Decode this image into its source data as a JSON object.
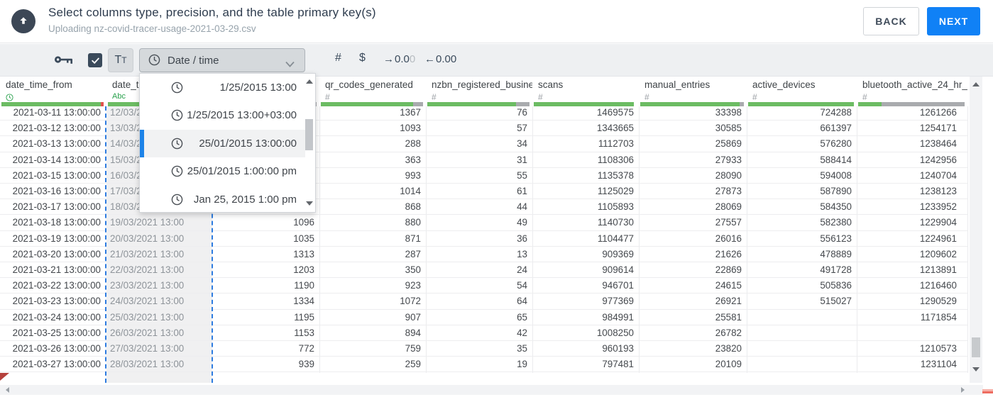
{
  "header": {
    "title": "Select columns type, precision, and the table primary key(s)",
    "subtitle": "Uploading nz-covid-tracer-usage-2021-03-29.csv",
    "back_label": "BACK",
    "next_label": "NEXT"
  },
  "toolbar": {
    "type_dropdown_label": "Date / time",
    "hash_label": "#",
    "currency_label": "$",
    "increase_decimal": {
      "arrow": "→",
      "dark": "0.0",
      "light": "0"
    },
    "decrease_decimal": {
      "arrow": "←",
      "value": "0.00"
    },
    "text_type": {
      "first": "T",
      "second": "T"
    },
    "icons": {
      "primary_key": "key-icon",
      "boolean": "checkbox-checked-icon",
      "date_type": "clock-icon",
      "dropdown": "chevron-down-icon"
    }
  },
  "type_dropdown": {
    "items": [
      {
        "label": "1/25/2015 13:00",
        "selected": false
      },
      {
        "label": "1/25/2015 13:00+03:00",
        "selected": false
      },
      {
        "label": "25/01/2015 13:00:00",
        "selected": true
      },
      {
        "label": "25/01/2015 1:00:00 pm",
        "selected": false
      },
      {
        "label": "Jan 25, 2015 1:00 pm",
        "selected": false
      }
    ]
  },
  "table": {
    "columns": [
      {
        "label": "date_time_from",
        "type_icon": "clock",
        "bar": [
          {
            "c": "green",
            "f": 0.97
          },
          {
            "c": "red",
            "f": 0.03
          }
        ]
      },
      {
        "label": "date_t",
        "type_icon": "abc",
        "bar": [
          {
            "c": "green",
            "f": 1
          }
        ]
      },
      {
        "label": "",
        "type_icon": "",
        "bar": [
          {
            "c": "green",
            "f": 0.9
          },
          {
            "c": "gray",
            "f": 0.1
          }
        ]
      },
      {
        "label": "qr_codes_generated",
        "type_icon": "hash",
        "bar": [
          {
            "c": "green",
            "f": 0.9
          },
          {
            "c": "gray",
            "f": 0.1
          }
        ]
      },
      {
        "label": "nzbn_registered_busine",
        "type_icon": "hash",
        "bar": [
          {
            "c": "green",
            "f": 0.87
          },
          {
            "c": "gray",
            "f": 0.13
          }
        ]
      },
      {
        "label": "scans",
        "type_icon": "hash",
        "bar": [
          {
            "c": "green",
            "f": 0.98
          }
        ]
      },
      {
        "label": "manual_entries",
        "type_icon": "hash",
        "bar": [
          {
            "c": "green",
            "f": 0.96
          },
          {
            "c": "gray",
            "f": 0.04
          }
        ]
      },
      {
        "label": "active_devices",
        "type_icon": "hash",
        "bar": [
          {
            "c": "green",
            "f": 1
          }
        ]
      },
      {
        "label": "bluetooth_active_24_hr_",
        "type_icon": "hash",
        "bar": [
          {
            "c": "green",
            "f": 0.22
          },
          {
            "c": "gray",
            "f": 0.78
          }
        ]
      }
    ],
    "rows": [
      [
        "2021-03-11 13:00:00",
        "12/03/2021 13:00",
        "",
        "1367",
        "76",
        "1469575",
        "33398",
        "724288",
        "1261266"
      ],
      [
        "2021-03-12 13:00:00",
        "13/03/2021 13:00",
        "",
        "1093",
        "57",
        "1343665",
        "30585",
        "661397",
        "1254171"
      ],
      [
        "2021-03-13 13:00:00",
        "14/03/2021 13:00",
        "",
        "288",
        "34",
        "1112703",
        "25869",
        "576280",
        "1238464"
      ],
      [
        "2021-03-14 13:00:00",
        "15/03/2021 13:00",
        "",
        "363",
        "31",
        "1108306",
        "27933",
        "588414",
        "1242956"
      ],
      [
        "2021-03-15 13:00:00",
        "16/03/2021 13:00",
        "",
        "993",
        "55",
        "1135378",
        "28090",
        "594008",
        "1240704"
      ],
      [
        "2021-03-16 13:00:00",
        "17/03/2021 13:00",
        "",
        "1014",
        "61",
        "1125029",
        "27873",
        "587890",
        "1238123"
      ],
      [
        "2021-03-17 13:00:00",
        "18/03/2021 13:00",
        "",
        "868",
        "44",
        "1105893",
        "28069",
        "584350",
        "1233952"
      ],
      [
        "2021-03-18 13:00:00",
        "19/03/2021 13:00",
        "1096",
        "880",
        "49",
        "1140730",
        "27557",
        "582380",
        "1229904"
      ],
      [
        "2021-03-19 13:00:00",
        "20/03/2021 13:00",
        "1035",
        "871",
        "36",
        "1104477",
        "26016",
        "556123",
        "1224961"
      ],
      [
        "2021-03-20 13:00:00",
        "21/03/2021 13:00",
        "1313",
        "287",
        "13",
        "909369",
        "21626",
        "478889",
        "1209602"
      ],
      [
        "2021-03-21 13:00:00",
        "22/03/2021 13:00",
        "1203",
        "350",
        "24",
        "909614",
        "22869",
        "491728",
        "1213891"
      ],
      [
        "2021-03-22 13:00:00",
        "23/03/2021 13:00",
        "1190",
        "923",
        "54",
        "946701",
        "24615",
        "505836",
        "1216460"
      ],
      [
        "2021-03-23 13:00:00",
        "24/03/2021 13:00",
        "1334",
        "1072",
        "64",
        "977369",
        "26921",
        "515027",
        "1290529"
      ],
      [
        "2021-03-24 13:00:00",
        "25/03/2021 13:00",
        "1195",
        "907",
        "65",
        "984991",
        "25581",
        "",
        "1171854"
      ],
      [
        "2021-03-25 13:00:00",
        "26/03/2021 13:00",
        "1153",
        "894",
        "42",
        "1008250",
        "26782",
        "",
        ""
      ],
      [
        "2021-03-26 13:00:00",
        "27/03/2021 13:00",
        "772",
        "759",
        "35",
        "960193",
        "23820",
        "",
        "1210573"
      ],
      [
        "2021-03-27 13:00:00",
        "28/03/2021 13:00",
        "939",
        "259",
        "19",
        "797481",
        "20109",
        "",
        "1231104"
      ]
    ]
  },
  "colors": {
    "accent_blue": "#1081f6",
    "selected_blue": "#1d83e8",
    "bar_green": "#6cbc63",
    "bar_gray": "#a9abae",
    "bar_red": "#e0524d",
    "green_type_text": "#2aa14d",
    "dark_icon": "#3a4a5b"
  }
}
